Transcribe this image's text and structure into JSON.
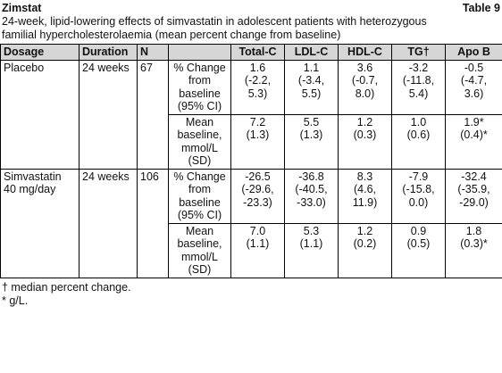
{
  "header": {
    "title": "Zimstat",
    "table_label": "Table 9"
  },
  "caption": [
    "24-week, lipid-lowering effects of simvastatin in adolescent patients with heterozygous",
    "familial hypercholesterolaemia (mean percent change from baseline)"
  ],
  "table": {
    "columns": [
      "Dosage",
      "Duration",
      "N",
      "Total-C",
      "LDL-C",
      "HDL-C",
      "TG†",
      "Apo B"
    ],
    "groups": [
      {
        "dosage": [
          "Placebo"
        ],
        "duration": "24 weeks",
        "n": "67",
        "rows": [
          {
            "measure": [
              "% Change",
              "from",
              "baseline",
              "(95% CI)"
            ],
            "values": [
              [
                "1.6",
                "(-2.2,",
                "5.3)"
              ],
              [
                "1.1",
                "(-3.4,",
                "5.5)"
              ],
              [
                "3.6",
                "(-0.7,",
                "8.0)"
              ],
              [
                "-3.2",
                "(-11.8,",
                "5.4)"
              ],
              [
                "-0.5",
                "(-4.7,",
                "3.6)"
              ]
            ]
          },
          {
            "measure": [
              "Mean",
              "baseline,",
              "mmol/L",
              "(SD)"
            ],
            "values": [
              [
                "7.2",
                "(1.3)"
              ],
              [
                "5.5",
                "(1.3)"
              ],
              [
                "1.2",
                "(0.3)"
              ],
              [
                "1.0",
                "(0.6)"
              ],
              [
                "1.9*",
                "(0.4)*"
              ]
            ]
          }
        ]
      },
      {
        "dosage": [
          "Simvastatin",
          "40 mg/day"
        ],
        "duration": "24 weeks",
        "n": "106",
        "rows": [
          {
            "measure": [
              "% Change",
              "from",
              "baseline",
              "(95% CI)"
            ],
            "values": [
              [
                "-26.5",
                "(-29.6,",
                "-23.3)"
              ],
              [
                "-36.8",
                "(-40.5,",
                "-33.0)"
              ],
              [
                "8.3",
                "(4.6,",
                "11.9)"
              ],
              [
                "-7.9",
                "(-15.8,",
                "0.0)"
              ],
              [
                "-32.4",
                "(-35.9,",
                "-29.0)"
              ]
            ]
          },
          {
            "measure": [
              "Mean",
              "baseline,",
              "mmol/L",
              "(SD)"
            ],
            "values": [
              [
                "7.0",
                "(1.1)"
              ],
              [
                "5.3",
                "(1.1)"
              ],
              [
                "1.2",
                "(0.2)"
              ],
              [
                "0.9",
                "(0.5)"
              ],
              [
                "1.8",
                "(0.3)*"
              ]
            ]
          }
        ]
      }
    ]
  },
  "footnotes": [
    "† median percent change.",
    "* g/L."
  ]
}
